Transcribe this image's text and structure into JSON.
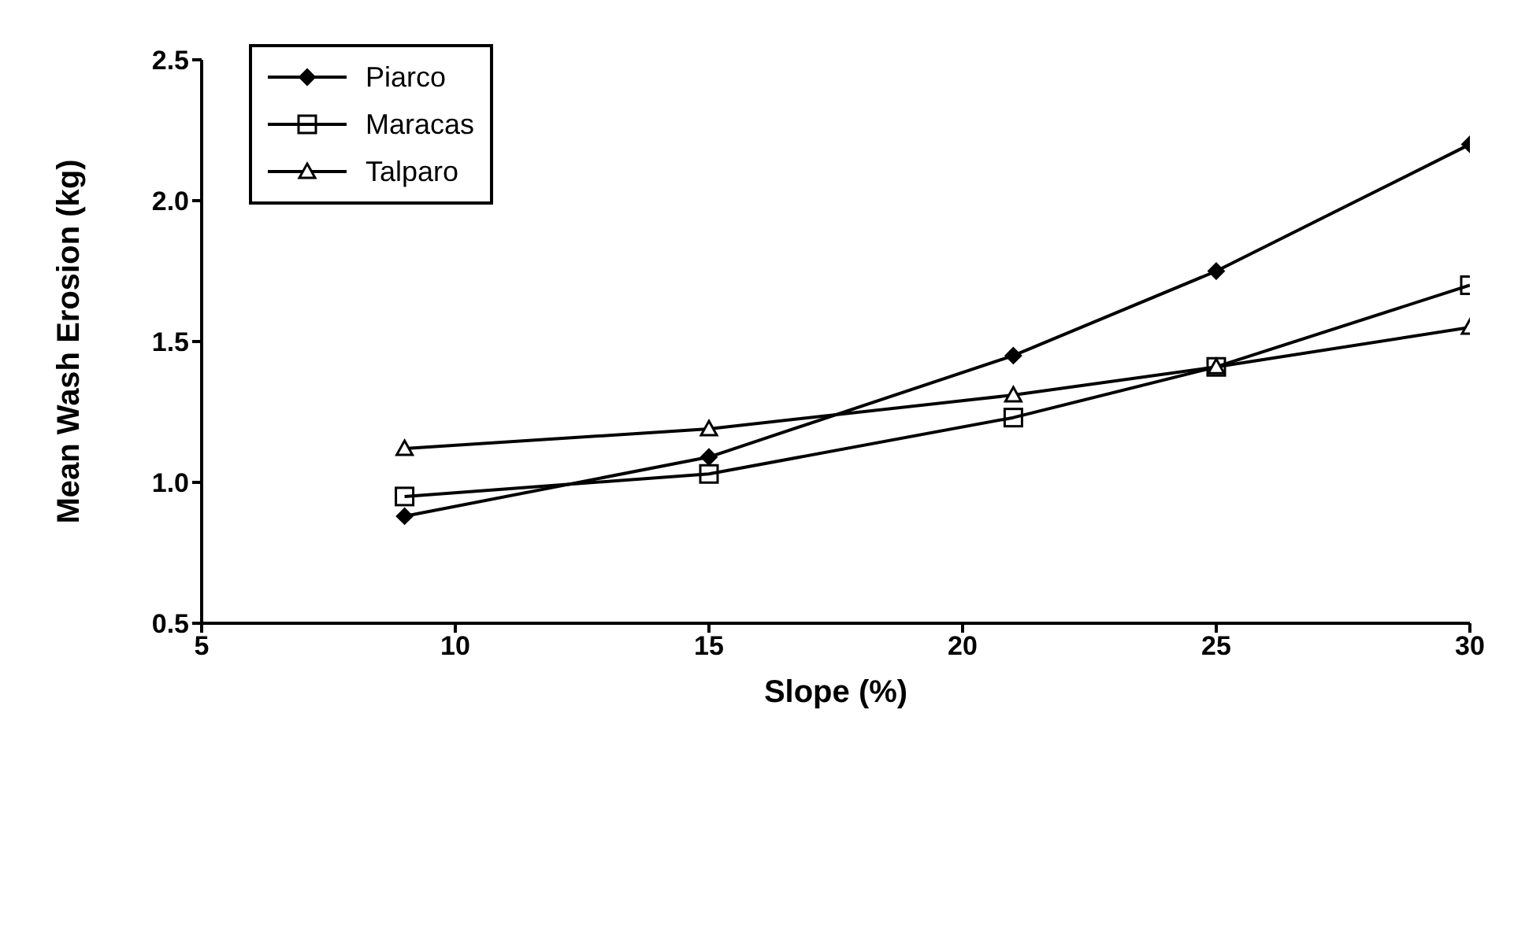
{
  "chart_data": {
    "type": "line",
    "xlabel": "Slope (%)",
    "ylabel": "Mean Wash Erosion (kg)",
    "x": [
      9,
      15,
      21,
      25,
      30
    ],
    "xlim": [
      5,
      30
    ],
    "xticks": [
      5,
      10,
      15,
      20,
      25,
      30
    ],
    "ylim": [
      0.5,
      2.5
    ],
    "yticks": [
      0.5,
      {
        "value": 1,
        "label": "1.0"
      },
      1.5,
      {
        "value": 2,
        "label": "2.0"
      },
      2.5
    ],
    "grid": false,
    "legend": "top left",
    "line_style": "solid",
    "series": [
      {
        "name": "Piarco",
        "color": "#000000",
        "marker": "diamond",
        "values": [
          0.88,
          1.09,
          1.45,
          1.75,
          2.2
        ]
      },
      {
        "name": "Maracas",
        "color": "#000000",
        "marker": "square",
        "values": [
          0.95,
          1.03,
          1.23,
          1.41,
          1.7
        ]
      },
      {
        "name": "Talparo",
        "color": "#000000",
        "marker": "triangle",
        "values": [
          1.12,
          1.19,
          1.31,
          1.41,
          1.55
        ]
      }
    ]
  }
}
